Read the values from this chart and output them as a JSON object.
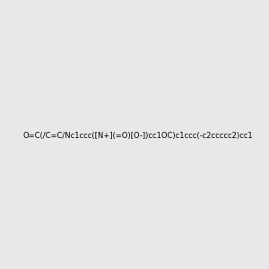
{
  "smiles": "O=C(/C=C/Nc1ccc([N+](=O)[O-])cc1OC)c1ccc(-c2ccccc2)cc1",
  "title": "",
  "bg_color": "#e8e8e8",
  "img_size": [
    300,
    300
  ]
}
